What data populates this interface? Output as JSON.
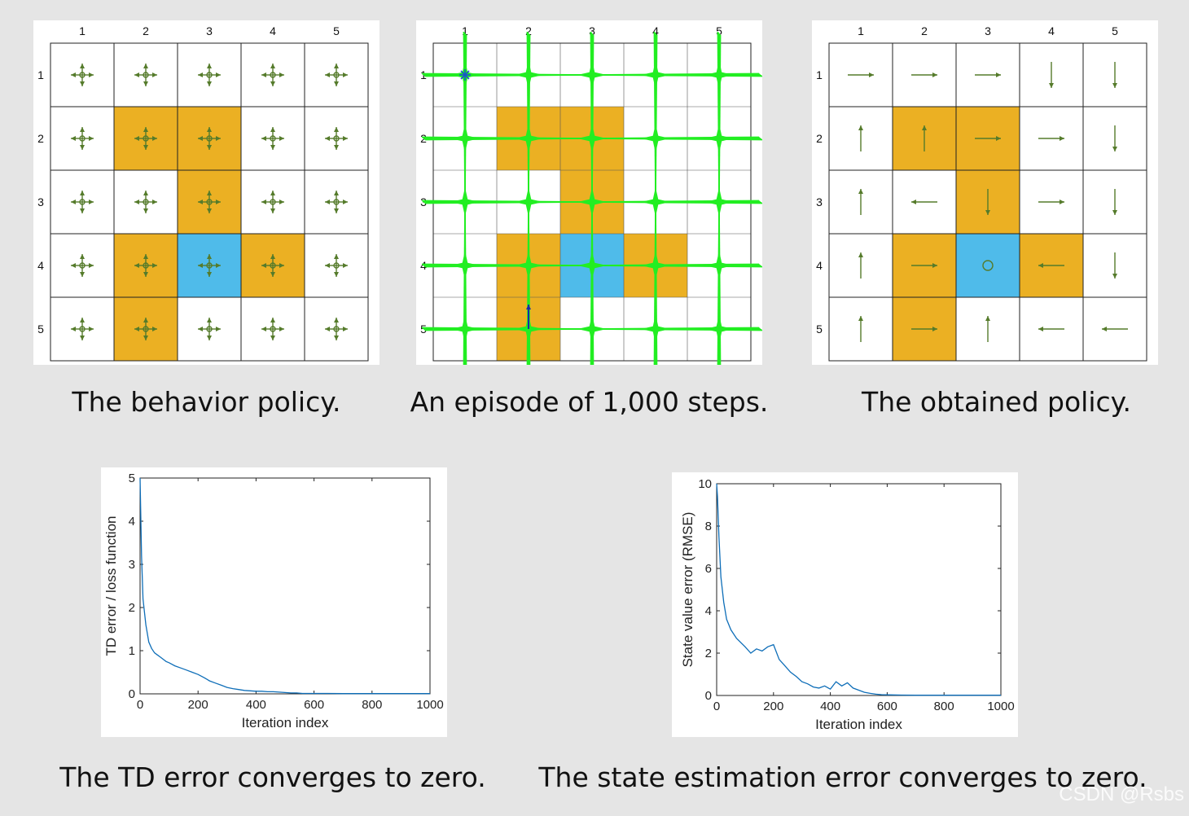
{
  "colors": {
    "forbidden": "#ebb023",
    "target": "#4fbbea",
    "arrow": "#557b2b",
    "grid": "#222222",
    "trajectory": "#22ee22",
    "start_marker": "#1a57c8",
    "line": "#0e6eb8"
  },
  "grid_world": {
    "rows": 5,
    "cols": 5,
    "col_labels": [
      "1",
      "2",
      "3",
      "4",
      "5"
    ],
    "row_labels": [
      "1",
      "2",
      "3",
      "4",
      "5"
    ],
    "forbidden_cells": [
      [
        2,
        2
      ],
      [
        2,
        3
      ],
      [
        3,
        3
      ],
      [
        4,
        2
      ],
      [
        4,
        4
      ],
      [
        5,
        2
      ]
    ],
    "target_cell": [
      4,
      3
    ]
  },
  "captions": {
    "behavior": "The behavior policy.",
    "episode": "An episode of 1,000 steps.",
    "obtained": "The obtained policy.",
    "td": "The TD error converges to zero.",
    "state": "The state estimation error converges to zero."
  },
  "obtained_policy": [
    [
      "right",
      "right",
      "right",
      "down",
      "down"
    ],
    [
      "up",
      "up",
      "right",
      "right",
      "down"
    ],
    [
      "up",
      "left",
      "down",
      "right",
      "down"
    ],
    [
      "up",
      "right",
      "stay",
      "left",
      "down"
    ],
    [
      "up",
      "right",
      "up",
      "left",
      "left"
    ]
  ],
  "episode": {
    "steps": 1000,
    "start_cell": [
      1,
      1
    ],
    "end_cell": [
      5,
      2
    ]
  },
  "chart_data": [
    {
      "type": "line",
      "xlabel": "Iteration index",
      "ylabel": "TD error / loss function",
      "xlim": [
        0,
        1000
      ],
      "ylim": [
        0,
        5
      ],
      "xticks": [
        "0",
        "200",
        "400",
        "600",
        "800",
        "1000"
      ],
      "yticks": [
        "0",
        "1",
        "2",
        "3",
        "4",
        "5"
      ],
      "series": [
        {
          "x": [
            0,
            5,
            10,
            20,
            30,
            40,
            50,
            60,
            70,
            80,
            90,
            100,
            120,
            140,
            160,
            180,
            200,
            220,
            240,
            260,
            280,
            300,
            320,
            340,
            360,
            380,
            400,
            420,
            440,
            460,
            480,
            500,
            520,
            540,
            560,
            580,
            600,
            650,
            700,
            800,
            900,
            1000
          ],
          "y": [
            5.0,
            3.2,
            2.2,
            1.6,
            1.2,
            1.05,
            0.95,
            0.9,
            0.85,
            0.8,
            0.75,
            0.72,
            0.65,
            0.6,
            0.55,
            0.5,
            0.45,
            0.38,
            0.3,
            0.25,
            0.2,
            0.15,
            0.12,
            0.1,
            0.08,
            0.07,
            0.06,
            0.06,
            0.05,
            0.05,
            0.04,
            0.03,
            0.02,
            0.02,
            0.01,
            0.01,
            0.01,
            0.01,
            0.005,
            0.005,
            0.005,
            0.005
          ]
        }
      ]
    },
    {
      "type": "line",
      "xlabel": "Iteration index",
      "ylabel": "State value error (RMSE)",
      "xlim": [
        0,
        1000
      ],
      "ylim": [
        0,
        10
      ],
      "xticks": [
        "0",
        "200",
        "400",
        "600",
        "800",
        "1000"
      ],
      "yticks": [
        "0",
        "2",
        "4",
        "6",
        "8",
        "10"
      ],
      "series": [
        {
          "x": [
            0,
            3,
            8,
            15,
            25,
            35,
            50,
            70,
            100,
            120,
            140,
            160,
            180,
            200,
            220,
            240,
            260,
            280,
            300,
            320,
            340,
            360,
            380,
            400,
            420,
            440,
            460,
            480,
            500,
            520,
            540,
            560,
            580,
            600,
            650,
            700,
            800,
            900,
            1000
          ],
          "y": [
            10.0,
            9.4,
            7.5,
            5.6,
            4.4,
            3.6,
            3.1,
            2.7,
            2.3,
            2.0,
            2.2,
            2.1,
            2.3,
            2.4,
            1.7,
            1.4,
            1.1,
            0.9,
            0.65,
            0.55,
            0.4,
            0.35,
            0.45,
            0.3,
            0.65,
            0.45,
            0.6,
            0.35,
            0.25,
            0.15,
            0.1,
            0.06,
            0.04,
            0.03,
            0.02,
            0.01,
            0.01,
            0.01,
            0.01
          ]
        }
      ]
    }
  ]
}
